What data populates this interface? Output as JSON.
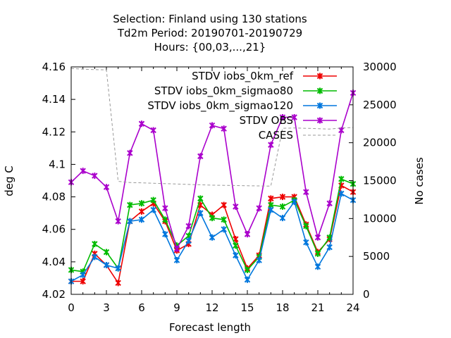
{
  "chart_data": {
    "type": "line",
    "title_lines": [
      "Selection: Finland using   130 stations",
      "Td2m   Period: 20190701-20190729",
      "Hours: {00,03,...,21}"
    ],
    "xlabel": "Forecast length",
    "ylabel": "deg C",
    "y2label": "No cases",
    "xlim": [
      0,
      24
    ],
    "ylim": [
      4.02,
      4.16
    ],
    "y2lim": [
      0,
      30000
    ],
    "xticks": [
      "0",
      "3",
      "6",
      "9",
      "12",
      "15",
      "18",
      "21",
      "24"
    ],
    "yticks": [
      "4.02",
      "4.04",
      "4.06",
      "4.08",
      "4.1",
      "4.12",
      "4.14",
      "4.16"
    ],
    "y2ticks": [
      "0",
      "5000",
      "10000",
      "15000",
      "20000",
      "25000",
      "30000"
    ],
    "legend_position": "top-right",
    "x": [
      0,
      1,
      2,
      3,
      4,
      5,
      6,
      7,
      8,
      9,
      10,
      11,
      12,
      13,
      14,
      15,
      16,
      17,
      18,
      19,
      20,
      21,
      22,
      23,
      24
    ],
    "series": [
      {
        "name": "STDV iobs_0km_ref",
        "color": "#ee0000",
        "axis": "y",
        "marker": "x",
        "values": [
          4.028,
          4.028,
          4.045,
          4.038,
          4.027,
          4.065,
          4.071,
          4.076,
          4.065,
          4.047,
          4.051,
          4.075,
          4.069,
          4.075,
          4.054,
          4.036,
          4.044,
          4.079,
          4.08,
          4.08,
          4.063,
          4.046,
          4.054,
          4.087,
          4.083
        ]
      },
      {
        "name": "STDV iobs_0km_sigmao80",
        "color": "#00bb00",
        "axis": "y",
        "marker": "x",
        "values": [
          4.035,
          4.034,
          4.051,
          4.046,
          4.036,
          4.075,
          4.076,
          4.078,
          4.066,
          4.05,
          4.056,
          4.079,
          4.067,
          4.066,
          4.05,
          4.035,
          4.043,
          4.075,
          4.074,
          4.078,
          4.062,
          4.045,
          4.055,
          4.091,
          4.088
        ]
      },
      {
        "name": "STDV iobs_0km_sigmao120",
        "color": "#0077dd",
        "axis": "y",
        "marker": "x",
        "values": [
          4.028,
          4.032,
          4.043,
          4.038,
          4.036,
          4.065,
          4.066,
          4.072,
          4.057,
          4.041,
          4.053,
          4.07,
          4.055,
          4.06,
          4.044,
          4.029,
          4.041,
          4.072,
          4.067,
          4.077,
          4.052,
          4.037,
          4.049,
          4.082,
          4.078
        ]
      },
      {
        "name": "STDV OBS",
        "color": "#aa00cc",
        "axis": "y",
        "marker": "x",
        "values": [
          4.089,
          4.096,
          4.093,
          4.086,
          4.065,
          4.107,
          4.125,
          4.121,
          4.073,
          4.048,
          4.062,
          4.105,
          4.124,
          4.122,
          4.074,
          4.057,
          4.073,
          4.112,
          4.129,
          4.129,
          4.083,
          4.055,
          4.076,
          4.121,
          4.144
        ]
      },
      {
        "name": "CASES",
        "color": "#999999",
        "axis": "y2",
        "dashed": true,
        "values": [
          29800,
          29700,
          29650,
          29600,
          14900,
          14750,
          14700,
          14650,
          14600,
          14550,
          14500,
          14450,
          14400,
          14380,
          14350,
          14320,
          14300,
          14280,
          21900,
          21950,
          21900,
          21850,
          21800,
          21950,
          22000
        ]
      }
    ]
  }
}
